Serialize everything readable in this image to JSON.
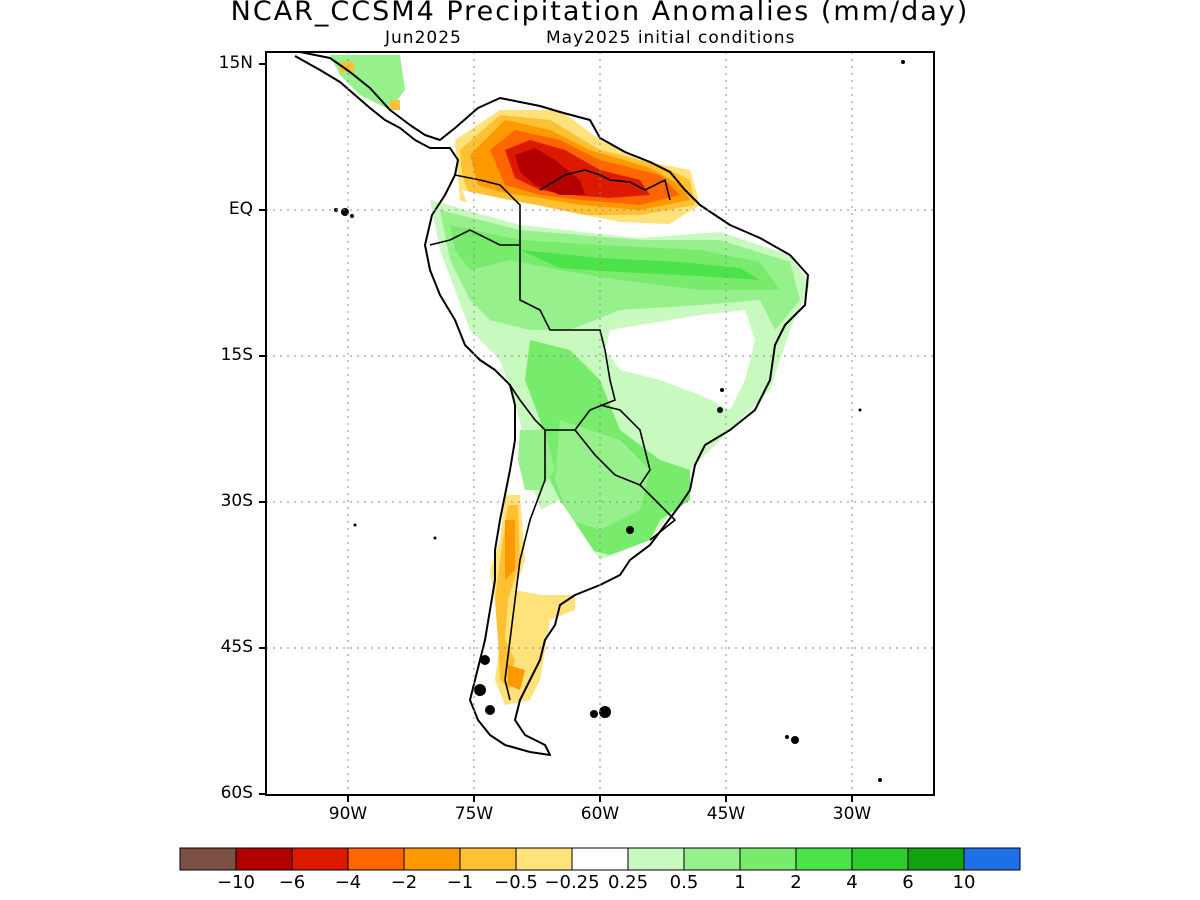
{
  "title": "NCAR_CCSM4 Precipitation Anomalies (mm/day)",
  "subtitle_left": "Jun2025",
  "subtitle_right": "May2025 initial conditions",
  "lat_labels": [
    "15N",
    "EQ",
    "15S",
    "30S",
    "45S",
    "60S"
  ],
  "lon_labels": [
    "90W",
    "75W",
    "60W",
    "45W",
    "30W"
  ],
  "colorbar": {
    "labels": [
      "-10",
      "-6",
      "-4",
      "-2",
      "-1",
      "-0.5",
      "-0.25",
      "0.25",
      "0.5",
      "1",
      "2",
      "4",
      "6",
      "10"
    ],
    "colors": [
      "#7a5044",
      "#b20000",
      "#dd1a00",
      "#ff6600",
      "#ff9900",
      "#ffc033",
      "#ffe27a",
      "#ffffff",
      "#c8fac0",
      "#96f08c",
      "#78ea6c",
      "#4ce24a",
      "#2ccd2c",
      "#11a111",
      "#1f6fe6"
    ]
  }
}
